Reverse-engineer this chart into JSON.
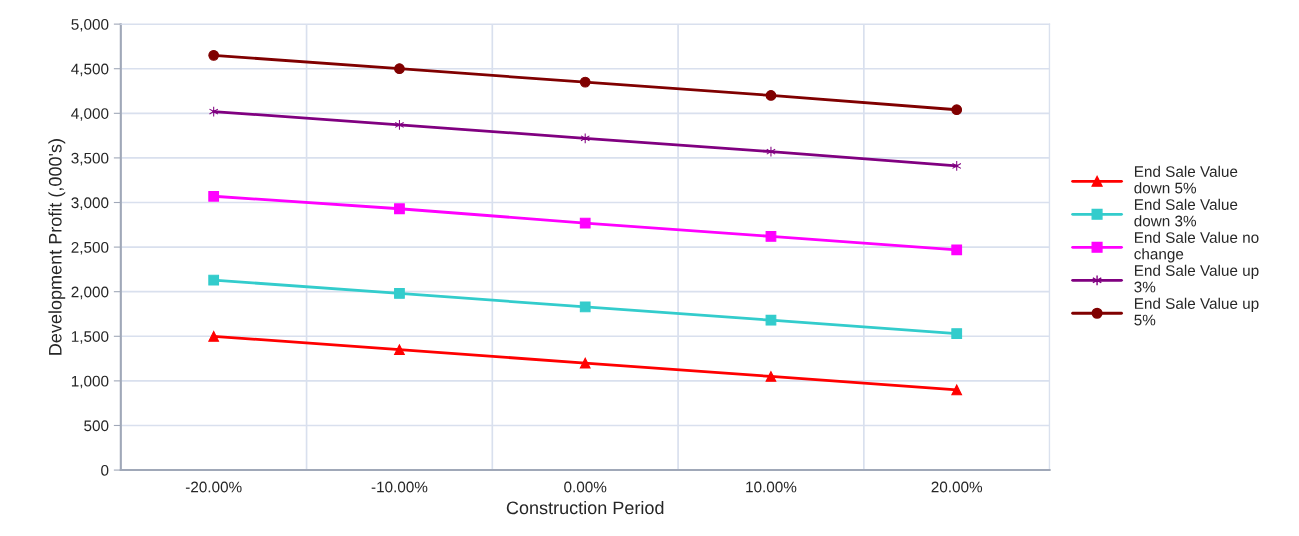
{
  "chart_data": {
    "type": "line",
    "xlabel": "Construction Period",
    "ylabel": "Development Profit (,000's)",
    "categories": [
      "-20.00%",
      "-10.00%",
      "0.00%",
      "10.00%",
      "20.00%"
    ],
    "series": [
      {
        "name": "End Sale Value down 5%",
        "color": "#ff0000",
        "marker": "triangle",
        "values": [
          1500,
          1350,
          1200,
          1050,
          900
        ]
      },
      {
        "name": "End Sale Value down 3%",
        "color": "#33cccc",
        "marker": "square",
        "values": [
          2130,
          1980,
          1830,
          1680,
          1530
        ]
      },
      {
        "name": "End Sale Value no change",
        "color": "#ff00ff",
        "marker": "square",
        "values": [
          3070,
          2930,
          2770,
          2620,
          2470
        ]
      },
      {
        "name": "End Sale Value up 3%",
        "color": "#800080",
        "marker": "cross",
        "values": [
          4020,
          3870,
          3720,
          3570,
          3410
        ]
      },
      {
        "name": "End Sale Value up 5%",
        "color": "#800000",
        "marker": "circle",
        "values": [
          4650,
          4500,
          4350,
          4200,
          4040
        ]
      }
    ],
    "ylim": [
      0,
      5000
    ],
    "yticks": [
      {
        "value": 0,
        "label": "0"
      },
      {
        "value": 500,
        "label": "500"
      },
      {
        "value": 1000,
        "label": "1,000"
      },
      {
        "value": 1500,
        "label": "1,500"
      },
      {
        "value": 2000,
        "label": "2,000"
      },
      {
        "value": 2500,
        "label": "2,500"
      },
      {
        "value": 3000,
        "label": "3,000"
      },
      {
        "value": 3500,
        "label": "3,500"
      },
      {
        "value": 4000,
        "label": "4,000"
      },
      {
        "value": 4500,
        "label": "4,500"
      },
      {
        "value": 5000,
        "label": "5,000"
      }
    ],
    "grid": true,
    "legend": "right",
    "line_style": "solid"
  }
}
